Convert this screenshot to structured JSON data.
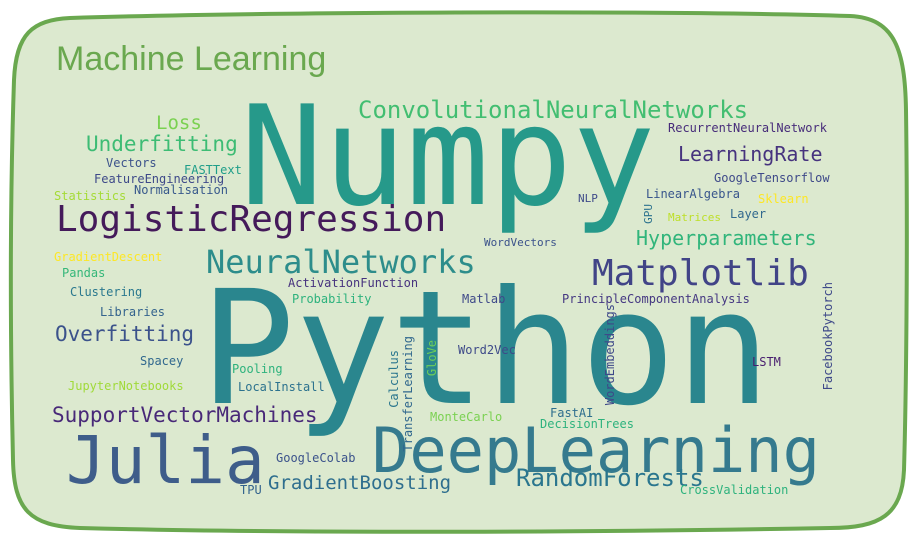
{
  "title": "Machine Learning",
  "colors": {
    "frame_fill": "#dce9cf",
    "frame_stroke": "#6aa84f",
    "title": "#6aa84f"
  },
  "words": {
    "numpy": "Numpy",
    "python": "Python",
    "deep_learning": "DeepLearning",
    "julia": "Julia",
    "logistic_regression": "LogisticRegression",
    "matplotlib": "Matplotlib",
    "neural_networks": "NeuralNetworks",
    "convolutional_neural_networks": "ConvolutionalNeuralNetworks",
    "random_forests": "RandomForests",
    "support_vector_machines": "SupportVectorMachines",
    "overfitting": "Overfitting",
    "underfitting": "Underfitting",
    "hyperparameters": "Hyperparameters",
    "learning_rate": "LearningRate",
    "gradient_boosting": "GradientBoosting",
    "loss": "Loss",
    "recurrent_neural_network": "RecurrentNeuralNetwork",
    "google_tensorflow": "GoogleTensorflow",
    "linear_algebra": "LinearAlgebra",
    "sklearn": "Sklearn",
    "matrices": "Matrices",
    "layer": "Layer",
    "gpu": "GPU",
    "nlp": "NLP",
    "word_vectors": "WordVectors",
    "vectors": "Vectors",
    "fasttext": "FASTText",
    "feature_engineering": "FeatureEngineering",
    "statistics": "Statistics",
    "normalisation": "Normalisation",
    "gradient_descent": "GradientDescent",
    "pandas": "Pandas",
    "clustering": "Clustering",
    "libraries": "Libraries",
    "activation_function": "ActivationFunction",
    "probability": "Probability",
    "matlab": "Matlab",
    "principle_component_analysis": "PrincipleComponentAnalysis",
    "facebook_pytorch": "FacebookPytorch",
    "spacey": "Spacey",
    "pooling": "Pooling",
    "local_install": "LocalInstall",
    "jupyter_notebooks": "JupyterNotebooks",
    "calculus": "Calculus",
    "transfer_learning": "TransferLearning",
    "glove": "GloVe",
    "word2vec": "Word2Vec",
    "word_embeddings": "WordEmbeddings",
    "lstm": "LSTM",
    "monte_carlo": "MonteCarlo",
    "fastai": "FastAI",
    "decision_trees": "DecisionTrees",
    "google_colab": "GoogleColab",
    "tpu": "TPU",
    "cross_validation": "CrossValidation"
  }
}
